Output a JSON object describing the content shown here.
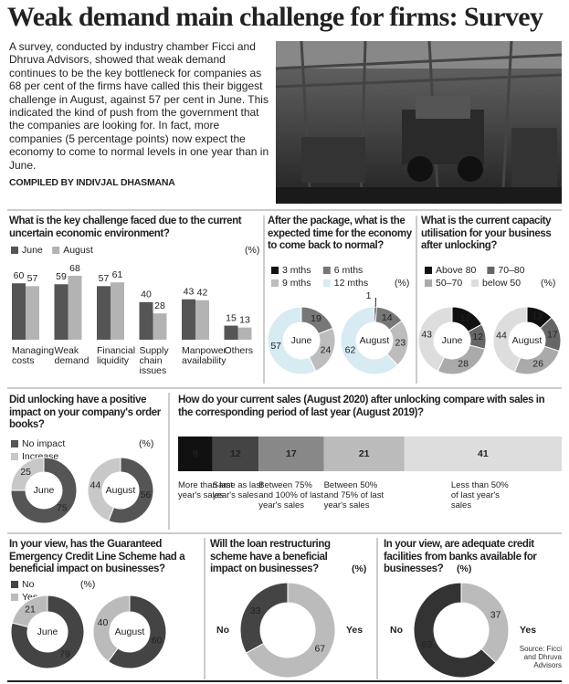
{
  "header": {
    "title": "Weak demand main challenge for firms: Survey",
    "intro": "A survey, conducted by industry chamber Ficci and Dhruva Advisors, showed that weak demand continues to be the key bottleneck for companies as 68 per cent of the firms have called this their biggest challenge in August, against 57 per cent in June. This indicated the kind of push from the government that the companies are looking for.  In fact, more companies (5 percentage points) now expect the economy to come to normal levels in one year than in June.",
    "credit": "COMPILED BY INDIVJAL DHASMANA"
  },
  "chart_data": [
    {
      "type": "bar",
      "title": "What is the key challenge faced due to the current uncertain economic environment?",
      "unit": "(%)",
      "categories": [
        "Managing costs",
        "Weak demand",
        "Financial liquidity",
        "Supply chain issues",
        "Manpower availability",
        "Others"
      ],
      "series": [
        {
          "name": "June",
          "color": "#555555",
          "values": [
            60,
            59,
            57,
            40,
            43,
            15
          ]
        },
        {
          "name": "August",
          "color": "#b3b3b3",
          "values": [
            57,
            68,
            61,
            28,
            42,
            13
          ]
        }
      ]
    },
    {
      "type": "donut",
      "title": "After the package, what is the expected time for the economy to come back to normal?",
      "unit": "(%)",
      "legend": true,
      "categories": [
        "3 mths",
        "6 mths",
        "9 mths",
        "12 mths"
      ],
      "colors": [
        "#111111",
        "#777777",
        "#bdbdbd",
        "#d6ebf2"
      ],
      "pies": [
        {
          "name": "June",
          "values": [
            null,
            19,
            24,
            57
          ]
        },
        {
          "name": "August",
          "values": [
            1,
            14,
            23,
            62
          ]
        }
      ]
    },
    {
      "type": "donut",
      "title": "What is the current capacity utilisation for your business after unlocking?",
      "unit": "(%)",
      "legend": true,
      "categories": [
        "Above 80",
        "70–80",
        "50–70",
        "below 50"
      ],
      "colors": [
        "#111111",
        "#666666",
        "#aaaaaa",
        "#dddddd"
      ],
      "pies": [
        {
          "name": "June",
          "values": [
            17,
            12,
            28,
            43
          ]
        },
        {
          "name": "August",
          "values": [
            13,
            17,
            26,
            44
          ]
        }
      ]
    },
    {
      "type": "donut",
      "title": "Did unlocking have a positive impact on your company's order books?",
      "unit": "(%)",
      "legend": true,
      "categories": [
        "No impact",
        "Increase"
      ],
      "colors": [
        "#555555",
        "#c8c8c8"
      ],
      "pies": [
        {
          "name": "June",
          "values": [
            75,
            25
          ]
        },
        {
          "name": "August",
          "values": [
            56,
            44
          ]
        }
      ]
    },
    {
      "type": "stacked-bar",
      "title": "How do your current sales (August 2020) after unlocking compare with sales in the corresponding period of last year (August 2019)?",
      "categories": [
        "More than last year's sales",
        "Same as last year's sales",
        "Between 75% and 100% of last year's sales",
        "Between 50% and 75% of last year's sales",
        "Less than 50% of last year's sales"
      ],
      "colors": [
        "#111111",
        "#444444",
        "#888888",
        "#bbbbbb",
        "#dddddd"
      ],
      "values": [
        9,
        12,
        17,
        21,
        41
      ]
    },
    {
      "type": "donut",
      "title": "In your view, has the Guaranteed Emergency Credit Line Scheme had a beneficial impact on businesses?",
      "unit": "(%)",
      "legend": true,
      "categories": [
        "No",
        "Yes"
      ],
      "colors": [
        "#444444",
        "#bbbbbb"
      ],
      "pies": [
        {
          "name": "June",
          "values": [
            79,
            21
          ]
        },
        {
          "name": "August",
          "values": [
            60,
            40
          ]
        }
      ]
    },
    {
      "type": "donut",
      "title": "Will the loan restructuring scheme have a beneficial impact on businesses?",
      "unit": "(%)",
      "legend": false,
      "categories": [
        "Yes",
        "No"
      ],
      "colors": [
        "#bbbbbb",
        "#444444"
      ],
      "pies": [
        {
          "values": [
            67,
            33
          ]
        }
      ]
    },
    {
      "type": "donut",
      "title": "In your view, are adequate credit facilities from banks available for businesses?",
      "unit": "(%)",
      "legend": false,
      "categories": [
        "Yes",
        "No"
      ],
      "colors": [
        "#bbbbbb",
        "#333333"
      ],
      "pies": [
        {
          "values": [
            37,
            63
          ]
        }
      ]
    }
  ],
  "source": "Source: Ficci and Dhruva Advisors"
}
